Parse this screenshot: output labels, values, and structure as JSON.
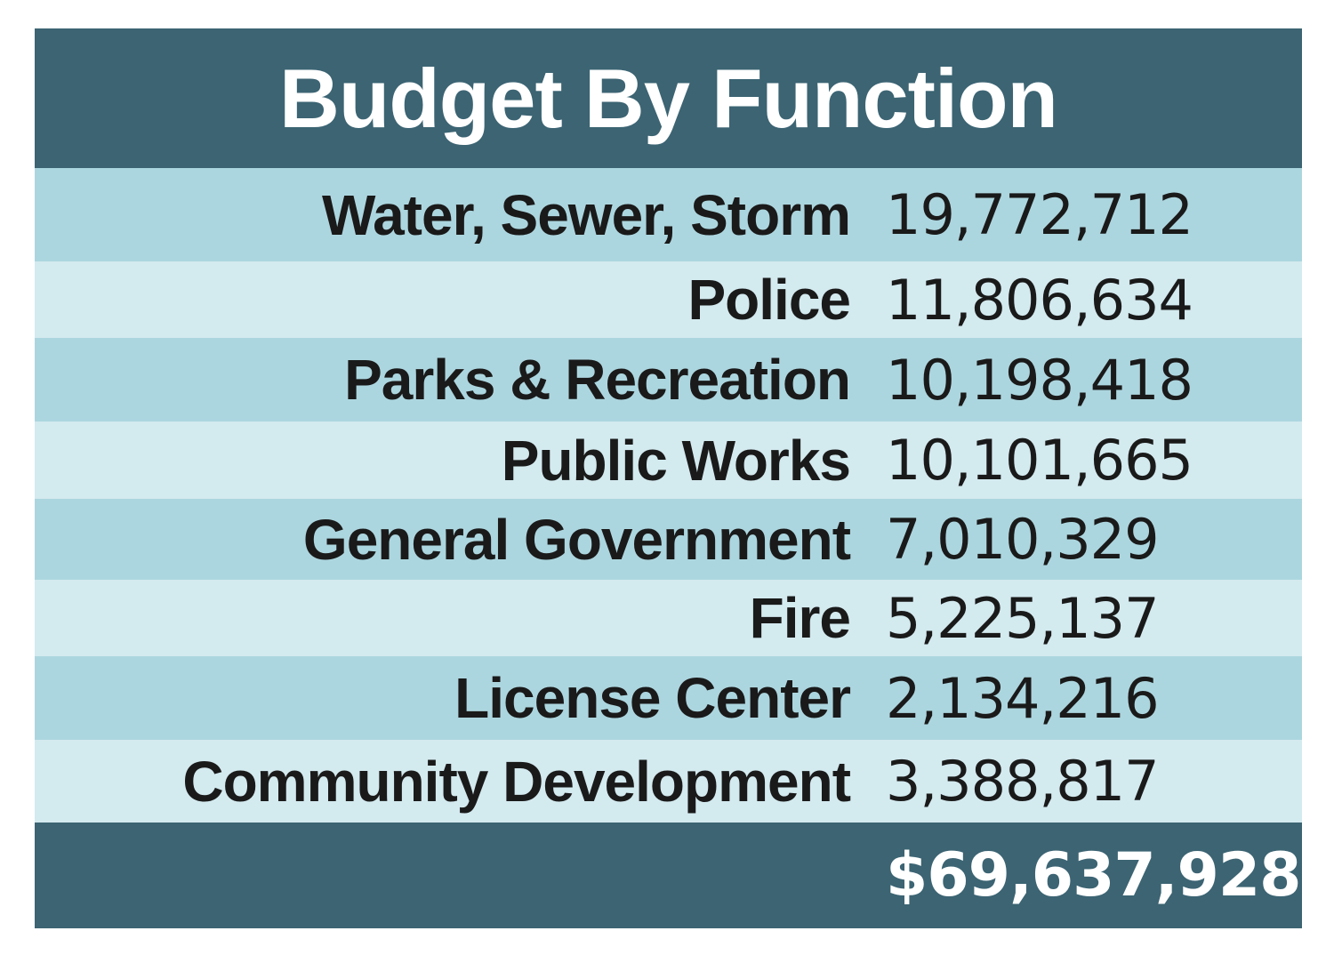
{
  "colors": {
    "header_bg": "#3c6473",
    "row_dark": "#acd6df",
    "row_light": "#d3eaef",
    "text": "#1a1a1a",
    "header_text": "#ffffff"
  },
  "chart_data": {
    "type": "table",
    "title": "Budget By Function",
    "rows": [
      {
        "label": "Water, Sewer, Storm",
        "value": "19,772,712"
      },
      {
        "label": "Police",
        "value": "11,806,634"
      },
      {
        "label": "Parks & Recreation",
        "value": "10,198,418"
      },
      {
        "label": "Public Works",
        "value": "10,101,665"
      },
      {
        "label": "General Government",
        "value": "7,010,329"
      },
      {
        "label": "Fire",
        "value": "5,225,137"
      },
      {
        "label": "License Center",
        "value": "2,134,216"
      },
      {
        "label": "Community Development",
        "value": "3,388,817"
      }
    ],
    "total": "$69,637,928"
  }
}
